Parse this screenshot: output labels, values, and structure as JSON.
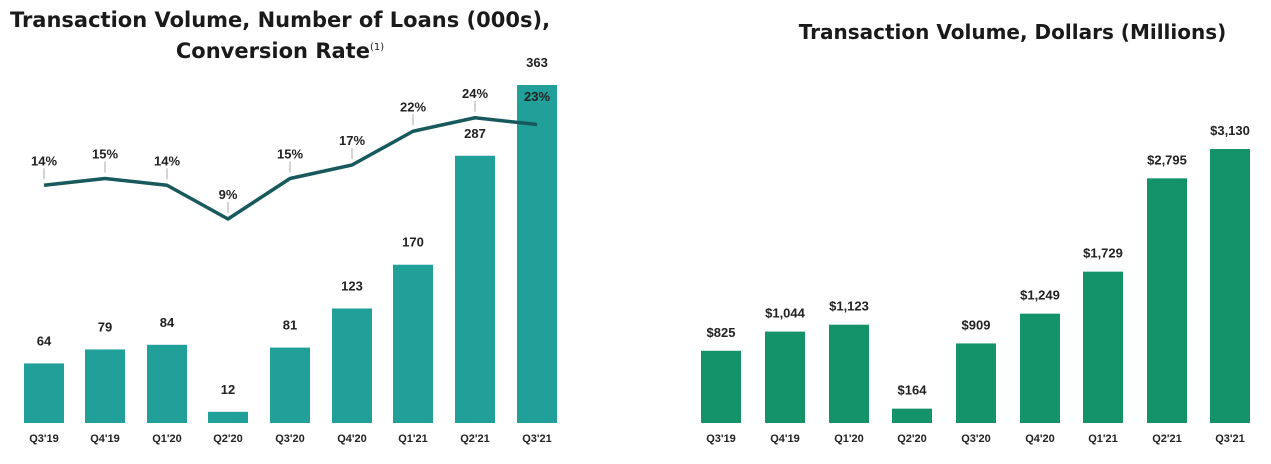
{
  "charts": {
    "left": {
      "title_line1": "Transaction Volume, Number of Loans (000s),",
      "title_line2": "Conversion Rate",
      "footnote": "(1)"
    },
    "right": {
      "title": "Transaction Volume, Dollars (Millions)"
    }
  },
  "colors": {
    "teal": "#21a09a",
    "green": "#14936b",
    "line": "#17595c"
  },
  "chart_data": [
    {
      "type": "bar",
      "title": "Transaction Volume, Number of Loans (000s), Conversion Rate (1)",
      "categories": [
        "Q3'19",
        "Q4'19",
        "Q1'20",
        "Q2'20",
        "Q3'20",
        "Q4'20",
        "Q1'21",
        "Q2'21",
        "Q3'21"
      ],
      "series": [
        {
          "values": [
            64,
            79,
            84,
            12,
            81,
            123,
            170,
            287,
            363
          ],
          "labels": [
            "64",
            "79",
            "84",
            "12",
            "81",
            "123",
            "170",
            "287",
            "363"
          ]
        },
        {
          "type": "line",
          "values": [
            14,
            15,
            14,
            9,
            15,
            17,
            22,
            24,
            23
          ],
          "labels": [
            "14%",
            "15%",
            "14%",
            "9%",
            "15%",
            "17%",
            "22%",
            "24%",
            "23%"
          ]
        }
      ],
      "ylim": [
        0,
        370
      ],
      "grid": false
    },
    {
      "type": "bar",
      "title": "Transaction Volume, Dollars (Millions)",
      "categories": [
        "Q3'19",
        "Q4'19",
        "Q1'20",
        "Q2'20",
        "Q3'20",
        "Q4'20",
        "Q1'21",
        "Q2'21",
        "Q3'21"
      ],
      "series": [
        {
          "values": [
            825,
            1044,
            1123,
            164,
            909,
            1249,
            1729,
            2795,
            3130
          ],
          "labels": [
            "$825",
            "$1,044",
            "$1,123",
            "$164",
            "$909",
            "$1,249",
            "$1,729",
            "$2,795",
            "$3,130"
          ]
        }
      ],
      "ylim": [
        0,
        3130
      ],
      "grid": false
    }
  ]
}
